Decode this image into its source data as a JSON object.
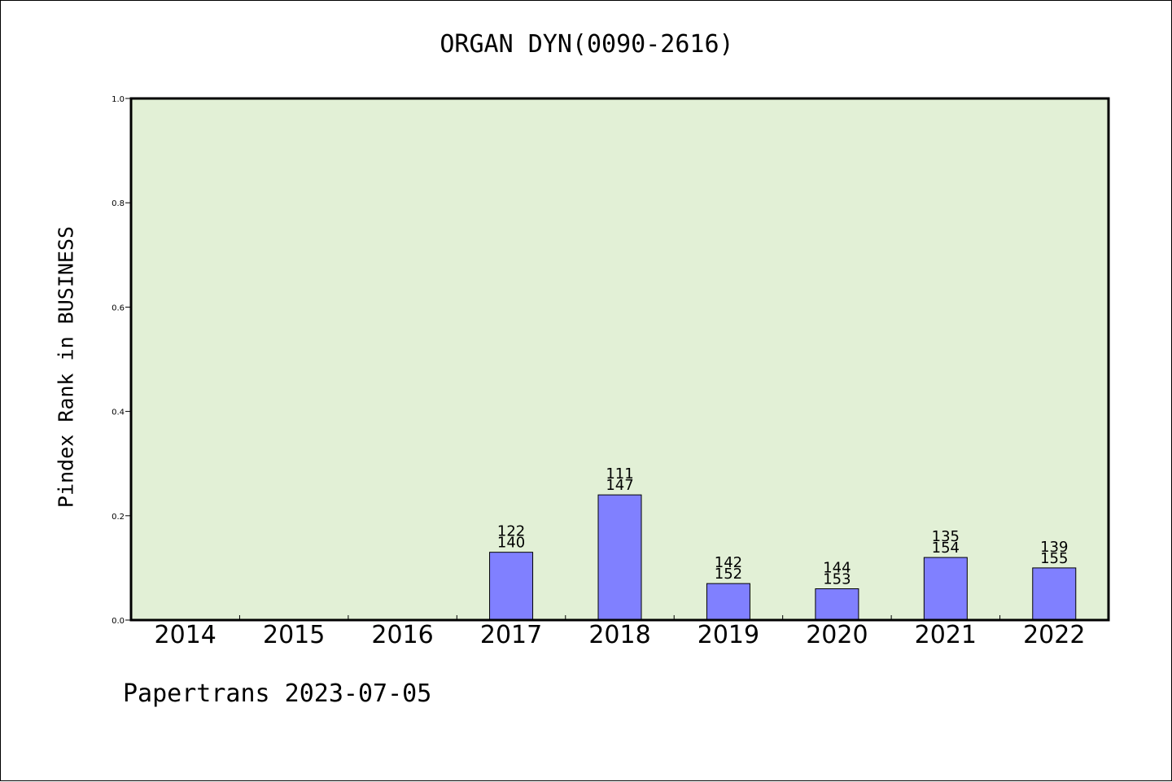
{
  "title": "ORGAN DYN(0090-2616)",
  "footer": "Papertrans 2023-07-05",
  "colors": {
    "plot_background": "#e2f0d6",
    "bar_fill": "#8080ff",
    "bar_stroke": "#000000"
  },
  "chart_data": {
    "type": "bar",
    "title": "ORGAN DYN(0090-2616)",
    "xlabel": "",
    "ylabel": "Pindex Rank in BUSINESS",
    "ylim": [
      0,
      1.0
    ],
    "yticks": [
      "0.0",
      "0.2",
      "0.4",
      "0.6",
      "0.8",
      "1.0"
    ],
    "categories": [
      "2014",
      "2015",
      "2016",
      "2017",
      "2018",
      "2019",
      "2020",
      "2021",
      "2022"
    ],
    "values": [
      0,
      0,
      0,
      0.13,
      0.24,
      0.07,
      0.06,
      0.12,
      0.1
    ],
    "labels": [
      [
        "",
        ""
      ],
      [
        "",
        ""
      ],
      [
        "",
        ""
      ],
      [
        "122",
        "140"
      ],
      [
        "111",
        "147"
      ],
      [
        "142",
        "152"
      ],
      [
        "144",
        "153"
      ],
      [
        "135",
        "154"
      ],
      [
        "139",
        "155"
      ]
    ],
    "grid": false,
    "legend": "none"
  }
}
